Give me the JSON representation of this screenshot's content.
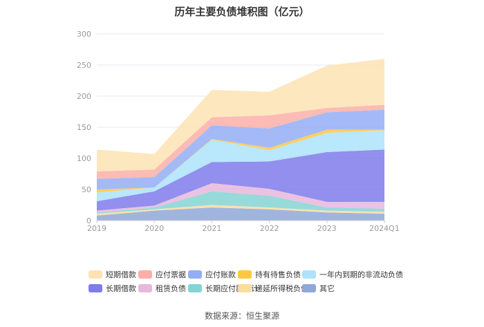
{
  "chart_data": {
    "type": "area",
    "title": "历年主要负债堆积图（亿元）",
    "categories": [
      "2019",
      "2020",
      "2021",
      "2022",
      "2023",
      "2024Q1"
    ],
    "ylim": [
      0,
      300
    ],
    "yticks": [
      0,
      50,
      100,
      150,
      200,
      250,
      300
    ],
    "grid": true,
    "legend_position": "bottom",
    "series": [
      {
        "name": "其它",
        "color": "#8FA8D8",
        "values": [
          8,
          16,
          21,
          18,
          13,
          11
        ]
      },
      {
        "name": "递延所得税负债",
        "color": "#FBDC9F",
        "values": [
          3,
          2,
          4,
          3,
          3,
          3
        ]
      },
      {
        "name": "长期应付款合计",
        "color": "#85D4D4",
        "values": [
          2,
          3,
          22,
          19,
          5,
          5
        ]
      },
      {
        "name": "租赁负债",
        "color": "#E8B7DC",
        "values": [
          3,
          3,
          13,
          11,
          9,
          11
        ]
      },
      {
        "name": "长期借款",
        "color": "#7F7BEB",
        "values": [
          15,
          23,
          34,
          44,
          80,
          84
        ]
      },
      {
        "name": "一年内到期的非流动负债",
        "color": "#ADE3FB",
        "values": [
          14,
          6,
          36,
          18,
          31,
          31
        ]
      },
      {
        "name": "持有待售负债",
        "color": "#FFC843",
        "values": [
          5,
          0,
          1,
          4,
          5,
          1
        ]
      },
      {
        "name": "应付账款",
        "color": "#94AEF6",
        "values": [
          17,
          17,
          22,
          31,
          28,
          32
        ]
      },
      {
        "name": "应付票据",
        "color": "#FBAFA7",
        "values": [
          12,
          12,
          13,
          21,
          7,
          8
        ]
      },
      {
        "name": "短期借款",
        "color": "#FDE3B4",
        "values": [
          35,
          25,
          44,
          38,
          68,
          74
        ]
      }
    ]
  },
  "legend": [
    {
      "label": "短期借款",
      "color": "#FDE3B4"
    },
    {
      "label": "应付票据",
      "color": "#FBAFA7"
    },
    {
      "label": "应付账款",
      "color": "#94AEF6"
    },
    {
      "label": "持有待售负债",
      "color": "#FFC843"
    },
    {
      "label": "一年内到期的非流动负债",
      "color": "#ADE3FB"
    },
    {
      "label": "长期借款",
      "color": "#7F7BEB"
    },
    {
      "label": "租赁负债",
      "color": "#E8B7DC"
    },
    {
      "label": "长期应付款合计",
      "color": "#85D4D4"
    },
    {
      "label": "递延所得税负债",
      "color": "#FBDC9F"
    },
    {
      "label": "其它",
      "color": "#8FA8D8"
    }
  ],
  "source": "数据来源：恒生聚源"
}
